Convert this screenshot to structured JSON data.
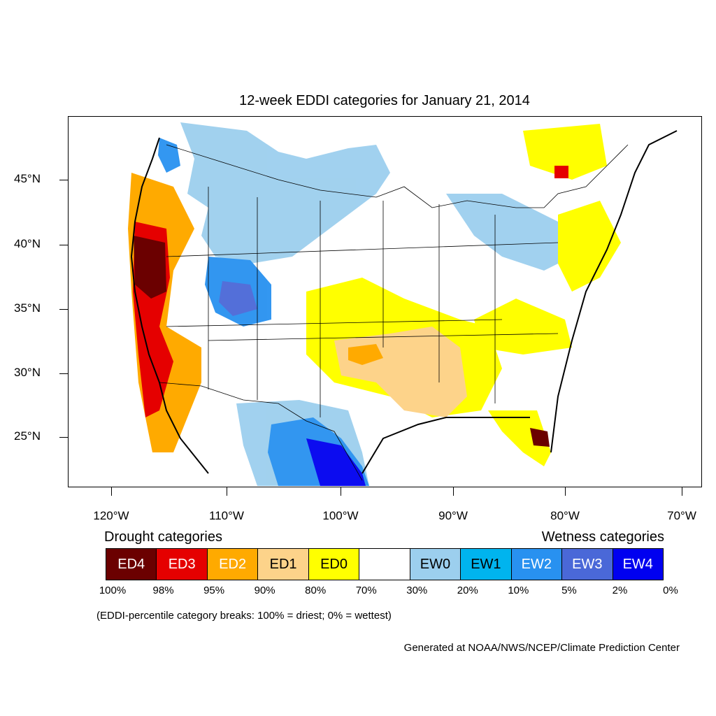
{
  "title": "12-week EDDI categories for January 21, 2014",
  "lat_labels": [
    "45°N",
    "40°N",
    "35°N",
    "30°N",
    "25°N"
  ],
  "lon_labels": [
    "120°W",
    "110°W",
    "100°W",
    "90°W",
    "80°W",
    "70°W"
  ],
  "legend": {
    "drought_heading": "Drought categories",
    "wetness_heading": "Wetness categories",
    "categories": [
      {
        "label": "ED4",
        "color": "#6b0000",
        "text_color": "#ffffff"
      },
      {
        "label": "ED3",
        "color": "#e50000",
        "text_color": "#ffffff"
      },
      {
        "label": "ED2",
        "color": "#ffaa00",
        "text_color": "#ffffff"
      },
      {
        "label": "ED1",
        "color": "#fdd38a",
        "text_color": "#000000"
      },
      {
        "label": "ED0",
        "color": "#ffff00",
        "text_color": "#000000"
      },
      {
        "label": "",
        "color": "#ffffff",
        "text_color": "#000000"
      },
      {
        "label": "EW0",
        "color": "#9ccfee",
        "text_color": "#000000"
      },
      {
        "label": "EW1",
        "color": "#00b4ee",
        "text_color": "#000000"
      },
      {
        "label": "EW2",
        "color": "#2891f0",
        "text_color": "#ffffff"
      },
      {
        "label": "EW3",
        "color": "#4a68d8",
        "text_color": "#ffffff"
      },
      {
        "label": "EW4",
        "color": "#0000f0",
        "text_color": "#ffffff"
      }
    ],
    "percentiles": [
      "100%",
      "98%",
      "95%",
      "90%",
      "80%",
      "70%",
      "30%",
      "20%",
      "10%",
      "5%",
      "2%",
      "0%"
    ]
  },
  "note": "(EDDI-percentile category breaks: 100% = driest; 0% = wettest)",
  "credit": "Generated at NOAA/NWS/NCEP/Climate Prediction Center"
}
